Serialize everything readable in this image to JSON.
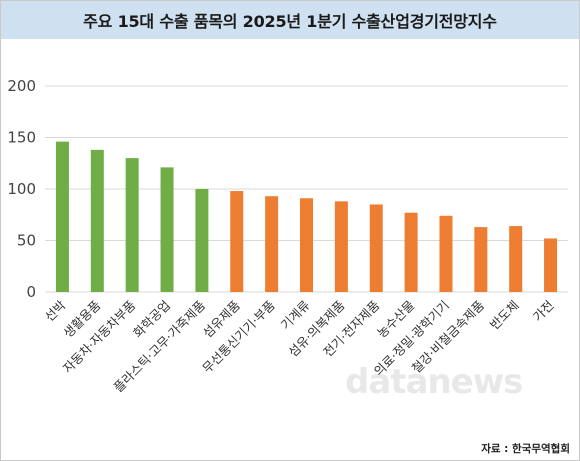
{
  "title": "주요 15대 수출 품목의 2025년 1분기 수출산업경기전망지수",
  "source": "자료 : 한국무역협회",
  "watermark": "datanews",
  "colors": {
    "green": "#70ad47",
    "orange": "#ed7d31",
    "title_bg": "#cfe0f1",
    "grid": "#d9d9d9"
  },
  "chart_data": {
    "type": "bar",
    "title": "주요 15대 수출 품목의 2025년 1분기 수출산업경기전망지수",
    "xlabel": "",
    "ylabel": "",
    "ylim": [
      0,
      200
    ],
    "yticks": [
      0,
      50,
      100,
      150,
      200
    ],
    "grid": true,
    "categories": [
      "선박",
      "생활용품",
      "자동차·자동차부품",
      "화학공업",
      "플라스틱·고무·가죽제품",
      "섬유제품",
      "무선통신기기·부품",
      "기계류",
      "섬유·의복제품",
      "전기·전자제품",
      "농수산물",
      "의료·정밀·광학기기",
      "철강·비철금속제품",
      "반도체",
      "가전"
    ],
    "values": [
      146,
      138,
      130,
      121,
      100,
      98,
      93,
      91,
      88,
      85,
      77,
      74,
      63,
      64,
      52
    ],
    "bar_colors": [
      "#70ad47",
      "#70ad47",
      "#70ad47",
      "#70ad47",
      "#70ad47",
      "#ed7d31",
      "#ed7d31",
      "#ed7d31",
      "#ed7d31",
      "#ed7d31",
      "#ed7d31",
      "#ed7d31",
      "#ed7d31",
      "#ed7d31",
      "#ed7d31"
    ]
  }
}
